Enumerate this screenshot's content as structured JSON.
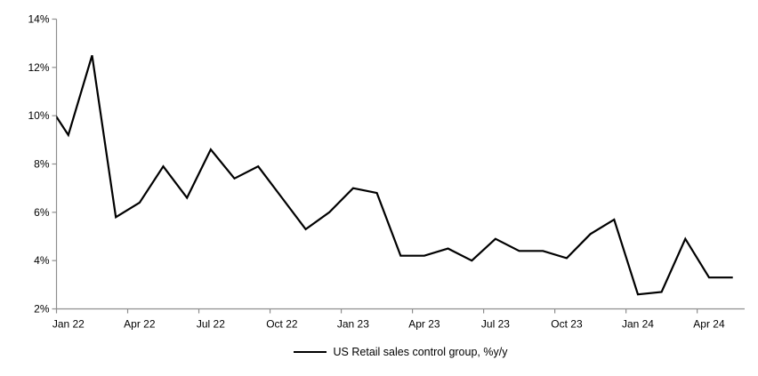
{
  "chart_data": {
    "type": "line",
    "title": "",
    "legend_label": "US Retail sales control group, %y/y",
    "legend_position": "bottom-center",
    "grid": false,
    "ylim": [
      2,
      14
    ],
    "ytick_step": 2,
    "ytick_labels": [
      "2%",
      "4%",
      "6%",
      "8%",
      "10%",
      "12%",
      "14%"
    ],
    "xtick_labels": [
      "Jan 22",
      "Apr 22",
      "Jul 22",
      "Oct 22",
      "Jan 23",
      "Apr 23",
      "Jul 23",
      "Oct 23",
      "Jan 24",
      "Apr 24"
    ],
    "xtick_interval_months": 3,
    "x": [
      "Dec 21",
      "Jan 22",
      "Feb 22",
      "Mar 22",
      "Apr 22",
      "May 22",
      "Jun 22",
      "Jul 22",
      "Aug 22",
      "Sep 22",
      "Oct 22",
      "Nov 22",
      "Dec 22",
      "Jan 23",
      "Feb 23",
      "Mar 23",
      "Apr 23",
      "May 23",
      "Jun 23",
      "Jul 23",
      "Aug 23",
      "Sep 23",
      "Oct 23",
      "Nov 23",
      "Dec 23",
      "Jan 24",
      "Feb 24",
      "Mar 24",
      "Apr 24",
      "May 24"
    ],
    "series": [
      {
        "name": "US Retail sales control group, %y/y",
        "values": [
          10.7,
          9.2,
          12.5,
          5.8,
          6.4,
          7.9,
          6.6,
          8.6,
          7.4,
          7.9,
          6.6,
          5.3,
          6.0,
          7.0,
          6.8,
          4.2,
          4.2,
          4.5,
          4.0,
          4.9,
          4.4,
          4.4,
          4.1,
          5.1,
          5.7,
          2.6,
          2.7,
          4.9,
          3.3,
          3.3
        ]
      }
    ],
    "first_point_clipped_at_left_axis": true,
    "line_color": "#000000",
    "axis_color": "#8e8e8e",
    "text_color": "#000000"
  }
}
